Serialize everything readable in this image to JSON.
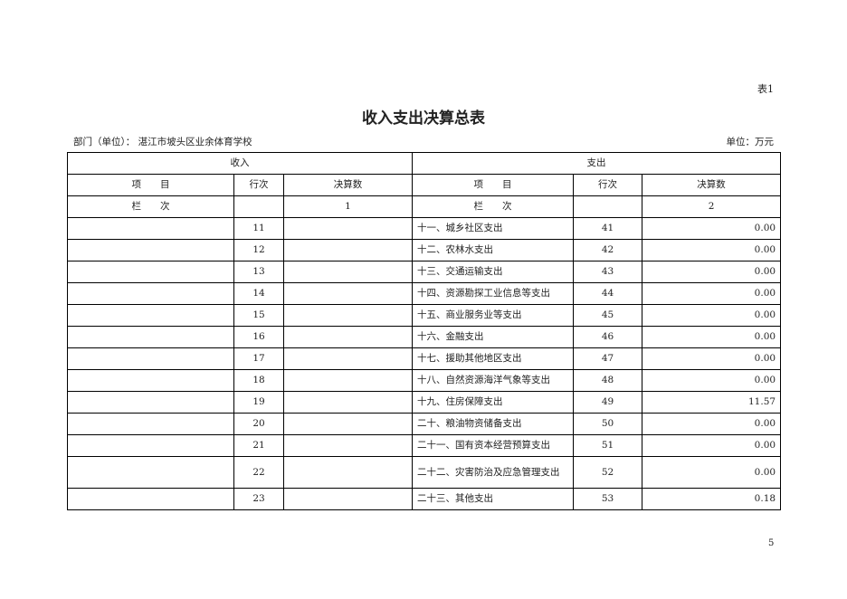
{
  "table_no": "表1",
  "title": "收入支出决算总表",
  "department": "部门（单位）： 湛江市坡头区业余体育学校",
  "unit": "单位：万元",
  "headers": {
    "income": "收入",
    "expense": "支出",
    "item": "项　　目",
    "line": "行次",
    "amount": "决算数",
    "column": "栏　　次",
    "income_col": "1",
    "expense_col": "2"
  },
  "rows": [
    {
      "in_item": "",
      "in_line": "11",
      "in_amount": "",
      "ex_item": "十一、城乡社区支出",
      "ex_line": "41",
      "ex_amount": "0.00"
    },
    {
      "in_item": "",
      "in_line": "12",
      "in_amount": "",
      "ex_item": "十二、农林水支出",
      "ex_line": "42",
      "ex_amount": "0.00"
    },
    {
      "in_item": "",
      "in_line": "13",
      "in_amount": "",
      "ex_item": "十三、交通运输支出",
      "ex_line": "43",
      "ex_amount": "0.00"
    },
    {
      "in_item": "",
      "in_line": "14",
      "in_amount": "",
      "ex_item": "十四、资源勘探工业信息等支出",
      "ex_line": "44",
      "ex_amount": "0.00"
    },
    {
      "in_item": "",
      "in_line": "15",
      "in_amount": "",
      "ex_item": "十五、商业服务业等支出",
      "ex_line": "45",
      "ex_amount": "0.00"
    },
    {
      "in_item": "",
      "in_line": "16",
      "in_amount": "",
      "ex_item": "十六、金融支出",
      "ex_line": "46",
      "ex_amount": "0.00"
    },
    {
      "in_item": "",
      "in_line": "17",
      "in_amount": "",
      "ex_item": "十七、援助其他地区支出",
      "ex_line": "47",
      "ex_amount": "0.00"
    },
    {
      "in_item": "",
      "in_line": "18",
      "in_amount": "",
      "ex_item": "十八、自然资源海洋气象等支出",
      "ex_line": "48",
      "ex_amount": "0.00"
    },
    {
      "in_item": "",
      "in_line": "19",
      "in_amount": "",
      "ex_item": "十九、住房保障支出",
      "ex_line": "49",
      "ex_amount": "11.57"
    },
    {
      "in_item": "",
      "in_line": "20",
      "in_amount": "",
      "ex_item": "二十、粮油物资储备支出",
      "ex_line": "50",
      "ex_amount": "0.00"
    },
    {
      "in_item": "",
      "in_line": "21",
      "in_amount": "",
      "ex_item": "二十一、国有资本经营预算支出",
      "ex_line": "51",
      "ex_amount": "0.00"
    },
    {
      "in_item": "",
      "in_line": "22",
      "in_amount": "",
      "ex_item": "二十二、灾害防治及应急管理支出",
      "ex_line": "52",
      "ex_amount": "0.00"
    },
    {
      "in_item": "",
      "in_line": "23",
      "in_amount": "",
      "ex_item": "二十三、其他支出",
      "ex_line": "53",
      "ex_amount": "0.18"
    }
  ],
  "page_number": "5"
}
